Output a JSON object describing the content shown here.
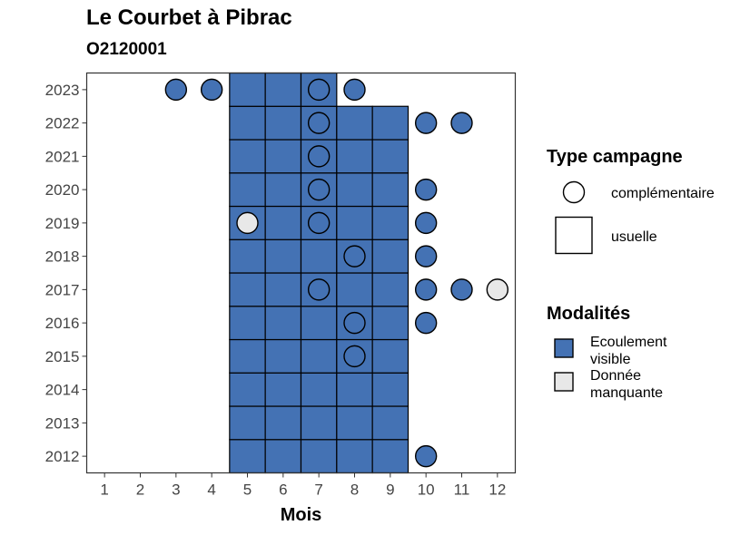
{
  "title": "Le Courbet à Pibrac",
  "subtitle": "O2120001",
  "chart_data": {
    "type": "heatmap",
    "xlabel": "Mois",
    "ylabel": "",
    "x_ticks": [
      1,
      2,
      3,
      4,
      5,
      6,
      7,
      8,
      9,
      10,
      11,
      12
    ],
    "y_ticks": [
      2012,
      2013,
      2014,
      2015,
      2016,
      2017,
      2018,
      2019,
      2020,
      2021,
      2022,
      2023
    ],
    "xlim": [
      0.5,
      12.5
    ],
    "ylim": [
      2011.5,
      2023.5
    ],
    "grid": false,
    "colors": {
      "Ecoulement visible": "#4472b4",
      "Donnée manquante": "#e8e8e8"
    },
    "cells": [
      {
        "month": 5,
        "year": 2012,
        "type": "usuelle",
        "modalite": "Ecoulement visible"
      },
      {
        "month": 6,
        "year": 2012,
        "type": "usuelle",
        "modalite": "Ecoulement visible"
      },
      {
        "month": 7,
        "year": 2012,
        "type": "usuelle",
        "modalite": "Ecoulement visible"
      },
      {
        "month": 8,
        "year": 2012,
        "type": "usuelle",
        "modalite": "Ecoulement visible"
      },
      {
        "month": 9,
        "year": 2012,
        "type": "usuelle",
        "modalite": "Ecoulement visible"
      },
      {
        "month": 10,
        "year": 2012,
        "type": "complémentaire",
        "modalite": "Ecoulement visible"
      },
      {
        "month": 5,
        "year": 2013,
        "type": "usuelle",
        "modalite": "Ecoulement visible"
      },
      {
        "month": 6,
        "year": 2013,
        "type": "usuelle",
        "modalite": "Ecoulement visible"
      },
      {
        "month": 7,
        "year": 2013,
        "type": "usuelle",
        "modalite": "Ecoulement visible"
      },
      {
        "month": 8,
        "year": 2013,
        "type": "usuelle",
        "modalite": "Ecoulement visible"
      },
      {
        "month": 9,
        "year": 2013,
        "type": "usuelle",
        "modalite": "Ecoulement visible"
      },
      {
        "month": 5,
        "year": 2014,
        "type": "usuelle",
        "modalite": "Ecoulement visible"
      },
      {
        "month": 6,
        "year": 2014,
        "type": "usuelle",
        "modalite": "Ecoulement visible"
      },
      {
        "month": 7,
        "year": 2014,
        "type": "usuelle",
        "modalite": "Ecoulement visible"
      },
      {
        "month": 8,
        "year": 2014,
        "type": "usuelle",
        "modalite": "Ecoulement visible"
      },
      {
        "month": 9,
        "year": 2014,
        "type": "usuelle",
        "modalite": "Ecoulement visible"
      },
      {
        "month": 5,
        "year": 2015,
        "type": "usuelle",
        "modalite": "Ecoulement visible"
      },
      {
        "month": 6,
        "year": 2015,
        "type": "usuelle",
        "modalite": "Ecoulement visible"
      },
      {
        "month": 7,
        "year": 2015,
        "type": "usuelle",
        "modalite": "Ecoulement visible"
      },
      {
        "month": 8,
        "year": 2015,
        "type": "usuelle",
        "modalite": "Ecoulement visible"
      },
      {
        "month": 9,
        "year": 2015,
        "type": "usuelle",
        "modalite": "Ecoulement visible"
      },
      {
        "month": 8,
        "year": 2015,
        "type": "complémentaire",
        "modalite": "Ecoulement visible"
      },
      {
        "month": 5,
        "year": 2016,
        "type": "usuelle",
        "modalite": "Ecoulement visible"
      },
      {
        "month": 6,
        "year": 2016,
        "type": "usuelle",
        "modalite": "Ecoulement visible"
      },
      {
        "month": 7,
        "year": 2016,
        "type": "usuelle",
        "modalite": "Ecoulement visible"
      },
      {
        "month": 8,
        "year": 2016,
        "type": "usuelle",
        "modalite": "Ecoulement visible"
      },
      {
        "month": 9,
        "year": 2016,
        "type": "usuelle",
        "modalite": "Ecoulement visible"
      },
      {
        "month": 8,
        "year": 2016,
        "type": "complémentaire",
        "modalite": "Ecoulement visible"
      },
      {
        "month": 10,
        "year": 2016,
        "type": "complémentaire",
        "modalite": "Ecoulement visible"
      },
      {
        "month": 5,
        "year": 2017,
        "type": "usuelle",
        "modalite": "Ecoulement visible"
      },
      {
        "month": 6,
        "year": 2017,
        "type": "usuelle",
        "modalite": "Ecoulement visible"
      },
      {
        "month": 7,
        "year": 2017,
        "type": "usuelle",
        "modalite": "Ecoulement visible"
      },
      {
        "month": 8,
        "year": 2017,
        "type": "usuelle",
        "modalite": "Ecoulement visible"
      },
      {
        "month": 9,
        "year": 2017,
        "type": "usuelle",
        "modalite": "Ecoulement visible"
      },
      {
        "month": 7,
        "year": 2017,
        "type": "complémentaire",
        "modalite": "Ecoulement visible"
      },
      {
        "month": 10,
        "year": 2017,
        "type": "complémentaire",
        "modalite": "Ecoulement visible"
      },
      {
        "month": 11,
        "year": 2017,
        "type": "complémentaire",
        "modalite": "Ecoulement visible"
      },
      {
        "month": 12,
        "year": 2017,
        "type": "complémentaire",
        "modalite": "Donnée manquante"
      },
      {
        "month": 5,
        "year": 2018,
        "type": "usuelle",
        "modalite": "Ecoulement visible"
      },
      {
        "month": 6,
        "year": 2018,
        "type": "usuelle",
        "modalite": "Ecoulement visible"
      },
      {
        "month": 7,
        "year": 2018,
        "type": "usuelle",
        "modalite": "Ecoulement visible"
      },
      {
        "month": 8,
        "year": 2018,
        "type": "usuelle",
        "modalite": "Ecoulement visible"
      },
      {
        "month": 9,
        "year": 2018,
        "type": "usuelle",
        "modalite": "Ecoulement visible"
      },
      {
        "month": 8,
        "year": 2018,
        "type": "complémentaire",
        "modalite": "Ecoulement visible"
      },
      {
        "month": 10,
        "year": 2018,
        "type": "complémentaire",
        "modalite": "Ecoulement visible"
      },
      {
        "month": 5,
        "year": 2019,
        "type": "usuelle",
        "modalite": "Ecoulement visible"
      },
      {
        "month": 6,
        "year": 2019,
        "type": "usuelle",
        "modalite": "Ecoulement visible"
      },
      {
        "month": 7,
        "year": 2019,
        "type": "usuelle",
        "modalite": "Ecoulement visible"
      },
      {
        "month": 8,
        "year": 2019,
        "type": "usuelle",
        "modalite": "Ecoulement visible"
      },
      {
        "month": 9,
        "year": 2019,
        "type": "usuelle",
        "modalite": "Ecoulement visible"
      },
      {
        "month": 5,
        "year": 2019,
        "type": "complémentaire",
        "modalite": "Donnée manquante"
      },
      {
        "month": 7,
        "year": 2019,
        "type": "complémentaire",
        "modalite": "Ecoulement visible"
      },
      {
        "month": 10,
        "year": 2019,
        "type": "complémentaire",
        "modalite": "Ecoulement visible"
      },
      {
        "month": 5,
        "year": 2020,
        "type": "usuelle",
        "modalite": "Ecoulement visible"
      },
      {
        "month": 6,
        "year": 2020,
        "type": "usuelle",
        "modalite": "Ecoulement visible"
      },
      {
        "month": 7,
        "year": 2020,
        "type": "usuelle",
        "modalite": "Ecoulement visible"
      },
      {
        "month": 8,
        "year": 2020,
        "type": "usuelle",
        "modalite": "Ecoulement visible"
      },
      {
        "month": 9,
        "year": 2020,
        "type": "usuelle",
        "modalite": "Ecoulement visible"
      },
      {
        "month": 7,
        "year": 2020,
        "type": "complémentaire",
        "modalite": "Ecoulement visible"
      },
      {
        "month": 10,
        "year": 2020,
        "type": "complémentaire",
        "modalite": "Ecoulement visible"
      },
      {
        "month": 5,
        "year": 2021,
        "type": "usuelle",
        "modalite": "Ecoulement visible"
      },
      {
        "month": 6,
        "year": 2021,
        "type": "usuelle",
        "modalite": "Ecoulement visible"
      },
      {
        "month": 7,
        "year": 2021,
        "type": "usuelle",
        "modalite": "Ecoulement visible"
      },
      {
        "month": 8,
        "year": 2021,
        "type": "usuelle",
        "modalite": "Ecoulement visible"
      },
      {
        "month": 9,
        "year": 2021,
        "type": "usuelle",
        "modalite": "Ecoulement visible"
      },
      {
        "month": 7,
        "year": 2021,
        "type": "complémentaire",
        "modalite": "Ecoulement visible"
      },
      {
        "month": 5,
        "year": 2022,
        "type": "usuelle",
        "modalite": "Ecoulement visible"
      },
      {
        "month": 6,
        "year": 2022,
        "type": "usuelle",
        "modalite": "Ecoulement visible"
      },
      {
        "month": 7,
        "year": 2022,
        "type": "usuelle",
        "modalite": "Ecoulement visible"
      },
      {
        "month": 8,
        "year": 2022,
        "type": "usuelle",
        "modalite": "Ecoulement visible"
      },
      {
        "month": 9,
        "year": 2022,
        "type": "usuelle",
        "modalite": "Ecoulement visible"
      },
      {
        "month": 7,
        "year": 2022,
        "type": "complémentaire",
        "modalite": "Ecoulement visible"
      },
      {
        "month": 10,
        "year": 2022,
        "type": "complémentaire",
        "modalite": "Ecoulement visible"
      },
      {
        "month": 11,
        "year": 2022,
        "type": "complémentaire",
        "modalite": "Ecoulement visible"
      },
      {
        "month": 5,
        "year": 2023,
        "type": "usuelle",
        "modalite": "Ecoulement visible"
      },
      {
        "month": 6,
        "year": 2023,
        "type": "usuelle",
        "modalite": "Ecoulement visible"
      },
      {
        "month": 7,
        "year": 2023,
        "type": "usuelle",
        "modalite": "Ecoulement visible"
      },
      {
        "month": 3,
        "year": 2023,
        "type": "complémentaire",
        "modalite": "Ecoulement visible"
      },
      {
        "month": 4,
        "year": 2023,
        "type": "complémentaire",
        "modalite": "Ecoulement visible"
      },
      {
        "month": 7,
        "year": 2023,
        "type": "complémentaire",
        "modalite": "Ecoulement visible"
      },
      {
        "month": 8,
        "year": 2023,
        "type": "complémentaire",
        "modalite": "Ecoulement visible"
      }
    ],
    "legend": {
      "placement": "right",
      "type_title": "Type campagne",
      "type_entries": [
        {
          "label": "complémentaire",
          "shape": "circle"
        },
        {
          "label": "usuelle",
          "shape": "square"
        }
      ],
      "modalite_title": "Modalités",
      "modalite_entries": [
        {
          "label_line1": "Ecoulement",
          "label_line2": "visible",
          "color": "#4472b4"
        },
        {
          "label_line1": "Donnée",
          "label_line2": "manquante",
          "color": "#e8e8e8"
        }
      ]
    }
  }
}
